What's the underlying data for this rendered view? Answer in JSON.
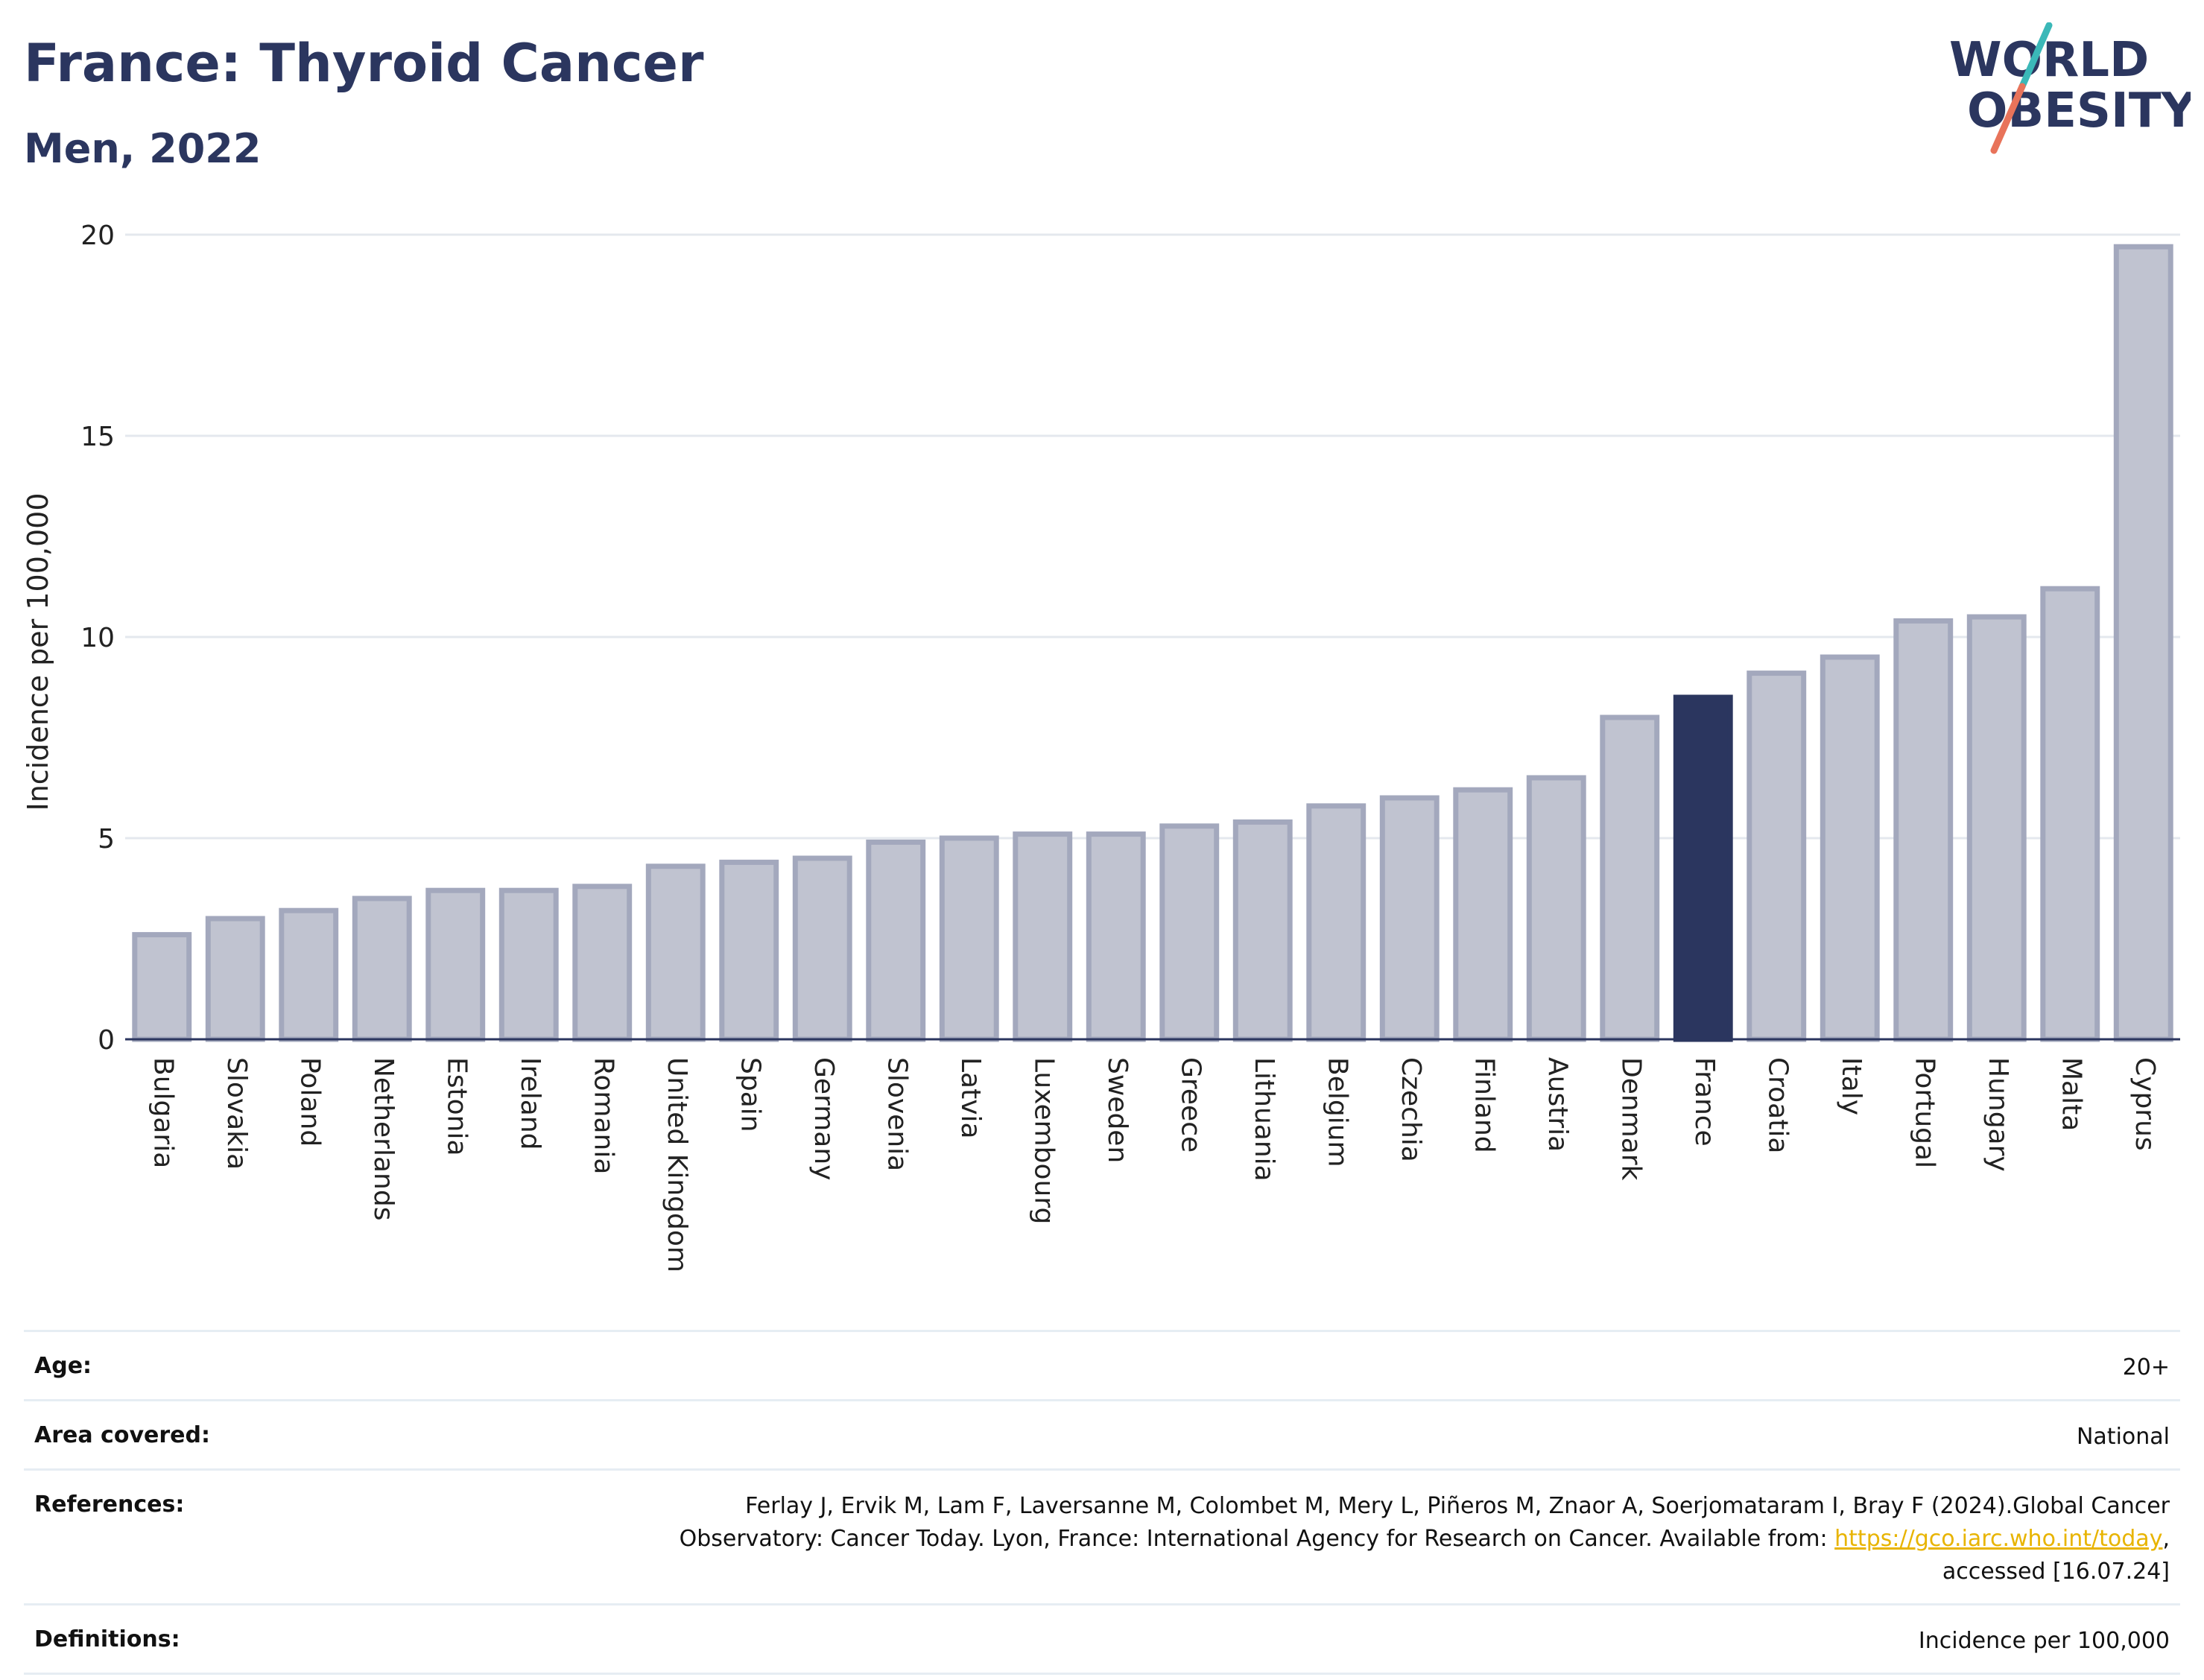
{
  "header": {
    "title": "France: Thyroid Cancer",
    "subtitle": "Men, 2022"
  },
  "logo": {
    "line1": "WORLD",
    "line2": "OBESITY",
    "colors": {
      "text": "#2b365f",
      "slash_top": "#3bb8b8",
      "slash_bottom": "#e8735a"
    }
  },
  "chart_data": {
    "type": "bar",
    "ylabel": "Incidence per 100,000",
    "xlabel": "",
    "ylim": [
      0,
      20
    ],
    "yticks": [
      0,
      5,
      10,
      15,
      20
    ],
    "grid": true,
    "highlight": "France",
    "colors": {
      "bar": "#c0c3d0",
      "bar_border": "#a3a8bd",
      "highlight": "#2b365f"
    },
    "categories": [
      "Bulgaria",
      "Slovakia",
      "Poland",
      "Netherlands",
      "Estonia",
      "Ireland",
      "Romania",
      "United Kingdom",
      "Spain",
      "Germany",
      "Slovenia",
      "Latvia",
      "Luxembourg",
      "Sweden",
      "Greece",
      "Lithuania",
      "Belgium",
      "Czechia",
      "Finland",
      "Austria",
      "Denmark",
      "France",
      "Croatia",
      "Italy",
      "Portugal",
      "Hungary",
      "Malta",
      "Cyprus"
    ],
    "values": [
      2.6,
      3.0,
      3.2,
      3.5,
      3.7,
      3.7,
      3.8,
      4.3,
      4.4,
      4.5,
      4.9,
      5.0,
      5.1,
      5.1,
      5.3,
      5.4,
      5.8,
      6.0,
      6.2,
      6.5,
      8.0,
      8.5,
      9.1,
      9.5,
      10.4,
      10.5,
      11.2,
      19.7
    ]
  },
  "meta": {
    "age_label": "Age:",
    "age_value": "20+",
    "area_label": "Area covered:",
    "area_value": "National",
    "references_label": "References:",
    "references_text_1": "Ferlay J, Ervik M, Lam F, Laversanne M, Colombet M, Mery L, Piñeros M, Znaor A, Soerjomataram I, Bray F (2024).Global Cancer Observatory: Cancer Today. Lyon, France: International Agency for Research on Cancer. Available from: ",
    "references_link": "https://gco.iarc.who.int/today",
    "references_text_2": ", accessed [16.07.24]",
    "definitions_label": "Definitions:",
    "definitions_value": "Incidence per 100,000"
  }
}
